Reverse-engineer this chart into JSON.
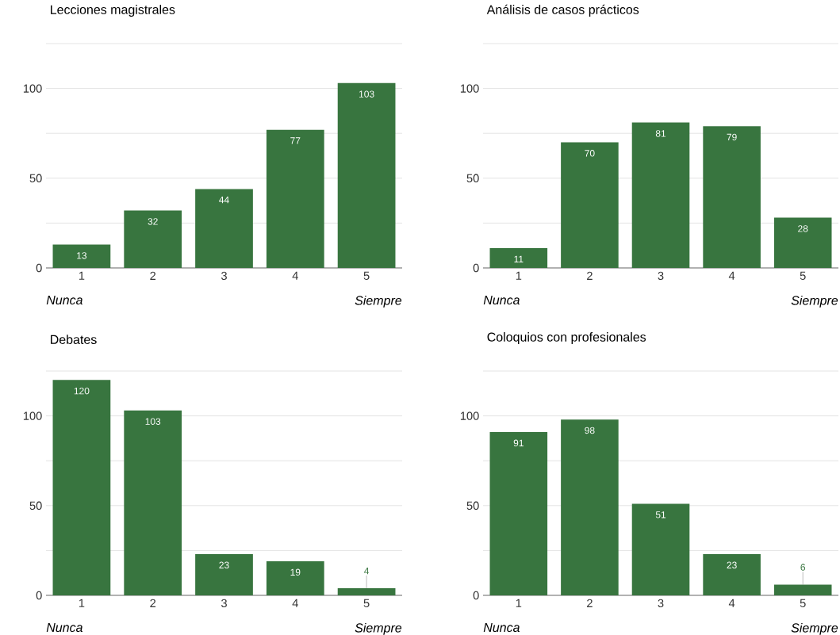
{
  "chart_data": [
    {
      "type": "bar",
      "title": "Lecciones magistrales",
      "categories": [
        "1",
        "2",
        "3",
        "4",
        "5"
      ],
      "values": [
        13,
        32,
        44,
        77,
        103
      ],
      "color": "#38753f",
      "ylim": [
        0,
        125
      ],
      "yticks": [
        0,
        {
          "value": 25,
          "label": null
        },
        50,
        {
          "value": 75,
          "label": null
        },
        100,
        {
          "value": 125,
          "label": null
        }
      ],
      "grid": "y",
      "data_labels": true,
      "annotations": [
        "Nunca",
        "Siempre"
      ]
    },
    {
      "type": "bar",
      "title": "Análisis de casos prácticos",
      "categories": [
        "1",
        "2",
        "3",
        "4",
        "5"
      ],
      "values": [
        11,
        70,
        81,
        79,
        28
      ],
      "color": "#38753f",
      "ylim": [
        0,
        125
      ],
      "yticks": [
        0,
        {
          "value": 25,
          "label": null
        },
        50,
        {
          "value": 75,
          "label": null
        },
        100,
        {
          "value": 125,
          "label": null
        }
      ],
      "grid": "y",
      "data_labels": true,
      "annotations": [
        "Nunca",
        "Siempre"
      ]
    },
    {
      "type": "bar",
      "title": "Debates",
      "categories": [
        "1",
        "2",
        "3",
        "4",
        "5"
      ],
      "values": [
        120,
        103,
        23,
        19,
        4
      ],
      "color": "#38753f",
      "ylim": [
        0,
        125
      ],
      "yticks": [
        0,
        {
          "value": 25,
          "label": null
        },
        50,
        {
          "value": 75,
          "label": null
        },
        100,
        {
          "value": 125,
          "label": null
        }
      ],
      "grid": "y",
      "data_labels": true,
      "annotations": [
        "Nunca",
        "Siempre"
      ]
    },
    {
      "type": "bar",
      "title": "Coloquios con profesionales",
      "categories": [
        "1",
        "2",
        "3",
        "4",
        "5"
      ],
      "values": [
        91,
        98,
        51,
        23,
        6
      ],
      "color": "#38753f",
      "ylim": [
        0,
        125
      ],
      "yticks": [
        0,
        {
          "value": 25,
          "label": null
        },
        50,
        {
          "value": 75,
          "label": null
        },
        100,
        {
          "value": 125,
          "label": null
        }
      ],
      "grid": "y",
      "data_labels": true,
      "annotations": [
        "Nunca",
        "Siempre"
      ]
    }
  ]
}
